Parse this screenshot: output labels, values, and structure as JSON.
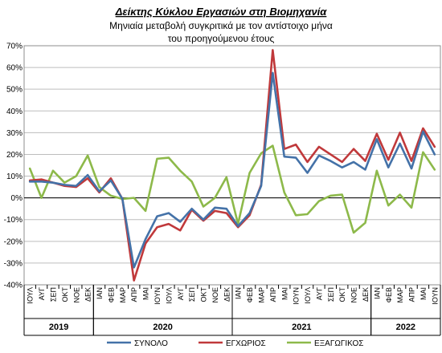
{
  "chart_data": {
    "type": "line",
    "title": "Δείκτης Κύκλου Εργασιών στη Βιομηχανία",
    "subtitle_lines": [
      "Μηνιαία μεταβολή συγκριτικά με τον αντίστοιχο μήνα",
      "του προηγούμενου έτους"
    ],
    "categories": [
      "ΙΟΥΛ",
      "ΑΥΓ",
      "ΣΕΠ",
      "ΟΚΤ",
      "ΝΟΕ",
      "ΔΕΚ",
      "ΙΑΝ",
      "ΦΕΒ",
      "ΜΑΡ",
      "ΑΠΡ",
      "ΜΑΙ",
      "ΙΟΥΝ",
      "ΙΟΥΛ",
      "ΑΥΓ",
      "ΣΕΠ",
      "ΟΚΤ",
      "ΝΟΕ",
      "ΔΕΚ",
      "ΙΑΝ",
      "ΦΕΒ",
      "ΜΑΡ",
      "ΑΠΡ",
      "ΜΑΙ",
      "ΙΟΥΝ",
      "ΙΟΥΛ",
      "ΑΥΓ",
      "ΣΕΠ",
      "ΟΚΤ",
      "ΝΟΕ",
      "ΔΕΚ",
      "ΙΑΝ",
      "ΦΕΒ",
      "ΜΑΡ",
      "ΑΠΡ",
      "ΜΑΙ",
      "ΙΟΥΝ"
    ],
    "years": [
      {
        "label": "2019",
        "start": 0,
        "end": 5
      },
      {
        "label": "2020",
        "start": 6,
        "end": 17
      },
      {
        "label": "2021",
        "start": 18,
        "end": 29
      },
      {
        "label": "2022",
        "start": 30,
        "end": 35
      }
    ],
    "yticks": [
      "-40%",
      "-30%",
      "-20%",
      "-10%",
      "0%",
      "10%",
      "20%",
      "30%",
      "40%",
      "50%",
      "60%",
      "70%"
    ],
    "ylim": [
      -40,
      70
    ],
    "grid": true,
    "legend_position": "bottom",
    "series": [
      {
        "name": "ΣΥΝΟΛΟ",
        "color": "#4472a8",
        "values": [
          7.5,
          7.5,
          7,
          6,
          5.5,
          10.5,
          3,
          8,
          -0.5,
          -32,
          -19,
          -8.5,
          -7,
          -11,
          -5,
          -10,
          -4.5,
          -5,
          -13,
          -7,
          5.5,
          57.5,
          19,
          18.5,
          11.5,
          19.5,
          17,
          14,
          16.5,
          13,
          27,
          14,
          25,
          13.5,
          30.5,
          20
        ]
      },
      {
        "name": "ΕΓΧΩΡΙΟΣ",
        "color": "#c0393b",
        "values": [
          8,
          8.5,
          7,
          5.5,
          5,
          9,
          2.5,
          9,
          -0.5,
          -38,
          -21,
          -13.5,
          -12,
          -15,
          -5.5,
          -10.5,
          -6,
          -7,
          -13.5,
          -8,
          6,
          68,
          22.5,
          24.5,
          16.5,
          23.5,
          20,
          16.5,
          22.5,
          17,
          29.5,
          17.5,
          30,
          17,
          32,
          23.5
        ]
      },
      {
        "name": "ΕΞΑΓΩΓΙΚΟΣ",
        "color": "#8db94a",
        "values": [
          13.5,
          0,
          12.5,
          7,
          10,
          19.5,
          5,
          1,
          -0.5,
          0,
          -6,
          18,
          18.5,
          12.5,
          7.5,
          -4,
          0,
          9.5,
          -12,
          11.5,
          20.5,
          24,
          2.5,
          -8,
          -7.5,
          -1.5,
          1,
          1.5,
          -16,
          -11.5,
          12.5,
          -3.5,
          1.5,
          -4.5,
          21,
          13
        ]
      }
    ]
  }
}
